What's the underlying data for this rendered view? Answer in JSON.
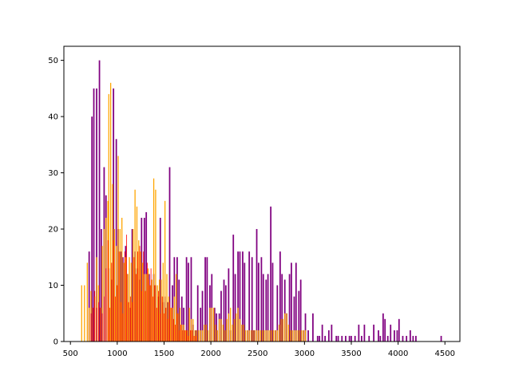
{
  "chart_data": {
    "type": "bar",
    "title": "",
    "xlabel": "",
    "ylabel": "",
    "xlim": [
      430,
      4660
    ],
    "ylim": [
      0,
      52.5
    ],
    "x_ticks": [
      500,
      1000,
      1500,
      2000,
      2500,
      3000,
      3500,
      4000,
      4500
    ],
    "y_ticks": [
      0,
      10,
      20,
      30,
      40,
      50
    ],
    "grid": false,
    "legend": "none",
    "series": [
      {
        "color": "#800080",
        "bar_width": 15,
        "points": [
          [
            700,
            16
          ],
          [
            730,
            40
          ],
          [
            750,
            45
          ],
          [
            780,
            45
          ],
          [
            810,
            50
          ],
          [
            830,
            20
          ],
          [
            860,
            31
          ],
          [
            880,
            26
          ],
          [
            910,
            13
          ],
          [
            940,
            11
          ],
          [
            960,
            45
          ],
          [
            990,
            36
          ],
          [
            1010,
            20
          ],
          [
            1040,
            16
          ],
          [
            1060,
            15
          ],
          [
            1090,
            17
          ],
          [
            1110,
            12
          ],
          [
            1140,
            6
          ],
          [
            1160,
            20
          ],
          [
            1190,
            16
          ],
          [
            1210,
            13
          ],
          [
            1240,
            11
          ],
          [
            1260,
            22
          ],
          [
            1290,
            22
          ],
          [
            1310,
            23
          ],
          [
            1340,
            12
          ],
          [
            1360,
            10
          ],
          [
            1390,
            12
          ],
          [
            1410,
            10
          ],
          [
            1440,
            8
          ],
          [
            1460,
            22
          ],
          [
            1490,
            7
          ],
          [
            1510,
            8
          ],
          [
            1540,
            7
          ],
          [
            1560,
            31
          ],
          [
            1590,
            10
          ],
          [
            1610,
            15
          ],
          [
            1640,
            15
          ],
          [
            1660,
            11
          ],
          [
            1690,
            8
          ],
          [
            1710,
            6
          ],
          [
            1740,
            15
          ],
          [
            1760,
            14
          ],
          [
            1790,
            15
          ],
          [
            1810,
            3
          ],
          [
            1840,
            2
          ],
          [
            1860,
            10
          ],
          [
            1890,
            6
          ],
          [
            1910,
            9
          ],
          [
            1940,
            15
          ],
          [
            1960,
            15
          ],
          [
            1990,
            10
          ],
          [
            2010,
            12
          ],
          [
            2040,
            6
          ],
          [
            2060,
            5
          ],
          [
            2090,
            5
          ],
          [
            2110,
            9
          ],
          [
            2140,
            11
          ],
          [
            2160,
            10
          ],
          [
            2190,
            13
          ],
          [
            2210,
            2
          ],
          [
            2240,
            19
          ],
          [
            2260,
            12
          ],
          [
            2290,
            16
          ],
          [
            2310,
            16
          ],
          [
            2340,
            16
          ],
          [
            2360,
            14
          ],
          [
            2390,
            2
          ],
          [
            2410,
            16
          ],
          [
            2440,
            15
          ],
          [
            2460,
            2
          ],
          [
            2490,
            20
          ],
          [
            2510,
            14
          ],
          [
            2540,
            15
          ],
          [
            2560,
            12
          ],
          [
            2590,
            11
          ],
          [
            2610,
            12
          ],
          [
            2640,
            24
          ],
          [
            2660,
            14
          ],
          [
            2690,
            2
          ],
          [
            2710,
            10
          ],
          [
            2740,
            16
          ],
          [
            2760,
            12
          ],
          [
            2790,
            11
          ],
          [
            2810,
            5
          ],
          [
            2840,
            12
          ],
          [
            2860,
            14
          ],
          [
            2890,
            8
          ],
          [
            2910,
            14
          ],
          [
            2940,
            9
          ],
          [
            2960,
            11
          ],
          [
            2990,
            2
          ],
          [
            3010,
            5
          ],
          [
            3040,
            2
          ],
          [
            3090,
            5
          ],
          [
            3140,
            1
          ],
          [
            3160,
            1
          ],
          [
            3190,
            3
          ],
          [
            3220,
            1
          ],
          [
            3260,
            2
          ],
          [
            3290,
            3
          ],
          [
            3340,
            1
          ],
          [
            3360,
            1
          ],
          [
            3400,
            1
          ],
          [
            3440,
            1
          ],
          [
            3480,
            1
          ],
          [
            3500,
            1
          ],
          [
            3540,
            1
          ],
          [
            3580,
            3
          ],
          [
            3610,
            1
          ],
          [
            3640,
            3
          ],
          [
            3690,
            1
          ],
          [
            3740,
            3
          ],
          [
            3790,
            2
          ],
          [
            3810,
            1
          ],
          [
            3840,
            5
          ],
          [
            3860,
            4
          ],
          [
            3890,
            1
          ],
          [
            3920,
            3
          ],
          [
            3960,
            2
          ],
          [
            3990,
            2
          ],
          [
            4010,
            4
          ],
          [
            4050,
            1
          ],
          [
            4090,
            1
          ],
          [
            4130,
            2
          ],
          [
            4160,
            1
          ],
          [
            4190,
            1
          ],
          [
            4460,
            1
          ]
        ]
      },
      {
        "color": "#FFA500",
        "bar_width": 11,
        "points": [
          [
            620,
            10
          ],
          [
            650,
            10
          ],
          [
            680,
            14
          ],
          [
            700,
            6
          ],
          [
            720,
            9
          ],
          [
            740,
            6
          ],
          [
            760,
            8
          ],
          [
            780,
            15
          ],
          [
            800,
            10
          ],
          [
            820,
            6
          ],
          [
            840,
            17
          ],
          [
            860,
            20
          ],
          [
            880,
            22
          ],
          [
            900,
            25
          ],
          [
            910,
            44
          ],
          [
            930,
            46
          ],
          [
            950,
            28
          ],
          [
            970,
            20
          ],
          [
            990,
            17
          ],
          [
            1010,
            33
          ],
          [
            1030,
            20
          ],
          [
            1050,
            22
          ],
          [
            1070,
            14
          ],
          [
            1090,
            15
          ],
          [
            1110,
            12
          ],
          [
            1130,
            15
          ],
          [
            1150,
            14
          ],
          [
            1170,
            20
          ],
          [
            1190,
            27
          ],
          [
            1210,
            24
          ],
          [
            1230,
            18
          ],
          [
            1250,
            16
          ],
          [
            1270,
            14
          ],
          [
            1290,
            12
          ],
          [
            1310,
            12
          ],
          [
            1330,
            13
          ],
          [
            1350,
            10
          ],
          [
            1370,
            11
          ],
          [
            1390,
            29
          ],
          [
            1410,
            27
          ],
          [
            1430,
            10
          ],
          [
            1450,
            11
          ],
          [
            1470,
            11
          ],
          [
            1490,
            14
          ],
          [
            1510,
            25
          ],
          [
            1530,
            12
          ],
          [
            1550,
            8
          ],
          [
            1570,
            6
          ],
          [
            1590,
            6
          ],
          [
            1610,
            8
          ],
          [
            1630,
            12
          ],
          [
            1650,
            5
          ],
          [
            1670,
            6
          ],
          [
            1690,
            3
          ],
          [
            1710,
            3
          ],
          [
            1730,
            2
          ],
          [
            1750,
            2
          ],
          [
            1770,
            6
          ],
          [
            1790,
            4
          ],
          [
            1810,
            4
          ],
          [
            1830,
            2
          ],
          [
            1850,
            2
          ],
          [
            1870,
            2
          ],
          [
            1890,
            2
          ],
          [
            1910,
            2
          ],
          [
            1930,
            3
          ],
          [
            1950,
            3
          ],
          [
            1970,
            2
          ],
          [
            1990,
            6
          ],
          [
            2010,
            6
          ],
          [
            2030,
            6
          ],
          [
            2050,
            3
          ],
          [
            2070,
            2
          ],
          [
            2090,
            4
          ],
          [
            2110,
            4
          ],
          [
            2130,
            3
          ],
          [
            2150,
            2
          ],
          [
            2170,
            4
          ],
          [
            2190,
            5
          ],
          [
            2210,
            6
          ],
          [
            2230,
            3
          ],
          [
            2250,
            4
          ],
          [
            2270,
            5
          ],
          [
            2290,
            6
          ],
          [
            2310,
            4
          ],
          [
            2330,
            3
          ],
          [
            2350,
            3
          ],
          [
            2370,
            2
          ],
          [
            2390,
            2
          ],
          [
            2410,
            2
          ],
          [
            2430,
            2
          ],
          [
            2450,
            2
          ],
          [
            2470,
            2
          ],
          [
            2490,
            2
          ],
          [
            2510,
            2
          ],
          [
            2530,
            2
          ],
          [
            2550,
            2
          ],
          [
            2570,
            2
          ],
          [
            2590,
            2
          ],
          [
            2610,
            2
          ],
          [
            2630,
            2
          ],
          [
            2650,
            2
          ],
          [
            2670,
            2
          ],
          [
            2690,
            2
          ],
          [
            2710,
            2
          ],
          [
            2730,
            3
          ],
          [
            2750,
            4
          ],
          [
            2770,
            4
          ],
          [
            2790,
            5
          ],
          [
            2810,
            5
          ],
          [
            2830,
            3
          ],
          [
            2850,
            2
          ],
          [
            2870,
            2
          ],
          [
            2890,
            2
          ],
          [
            2910,
            2
          ],
          [
            2930,
            2
          ],
          [
            2950,
            2
          ],
          [
            2970,
            2
          ],
          [
            2990,
            2
          ],
          [
            3010,
            2
          ]
        ]
      },
      {
        "color": "#FF0000",
        "bar_width": 6,
        "points": [
          [
            720,
            5
          ],
          [
            740,
            6
          ],
          [
            760,
            9
          ],
          [
            780,
            6
          ],
          [
            800,
            7
          ],
          [
            820,
            6
          ],
          [
            840,
            5
          ],
          [
            860,
            8
          ],
          [
            880,
            13
          ],
          [
            900,
            18
          ],
          [
            920,
            6
          ],
          [
            940,
            14
          ],
          [
            960,
            18
          ],
          [
            980,
            8
          ],
          [
            1000,
            10
          ],
          [
            1020,
            16
          ],
          [
            1040,
            7
          ],
          [
            1060,
            5
          ],
          [
            1080,
            16
          ],
          [
            1100,
            19
          ],
          [
            1120,
            7
          ],
          [
            1140,
            8
          ],
          [
            1160,
            7
          ],
          [
            1180,
            15
          ],
          [
            1200,
            12
          ],
          [
            1220,
            16
          ],
          [
            1240,
            17
          ],
          [
            1260,
            9
          ],
          [
            1280,
            16
          ],
          [
            1300,
            9
          ],
          [
            1320,
            14
          ],
          [
            1340,
            11
          ],
          [
            1360,
            13
          ],
          [
            1380,
            8
          ],
          [
            1400,
            10
          ],
          [
            1420,
            6
          ],
          [
            1440,
            9
          ],
          [
            1460,
            5
          ],
          [
            1480,
            8
          ],
          [
            1500,
            5
          ],
          [
            1520,
            6
          ],
          [
            1540,
            4
          ],
          [
            1560,
            7
          ],
          [
            1580,
            6
          ],
          [
            1600,
            4
          ],
          [
            1620,
            3
          ],
          [
            1640,
            5
          ],
          [
            1660,
            2
          ],
          [
            1680,
            3
          ],
          [
            1700,
            2
          ],
          [
            1720,
            2
          ],
          [
            1740,
            2
          ],
          [
            1760,
            1
          ],
          [
            1780,
            2
          ],
          [
            1800,
            2
          ],
          [
            1820,
            1
          ],
          [
            1840,
            1
          ]
        ]
      }
    ]
  }
}
